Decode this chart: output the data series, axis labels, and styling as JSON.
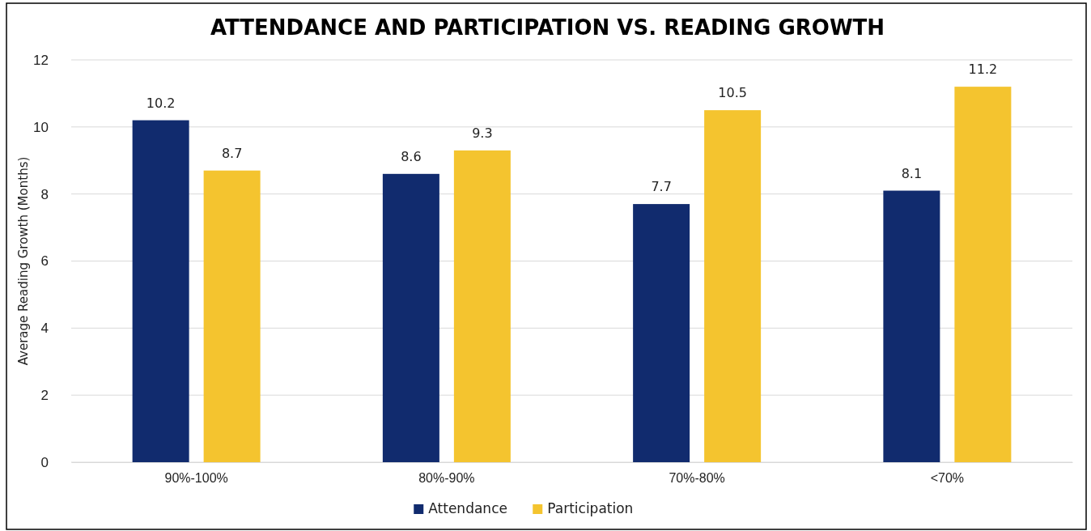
{
  "chart_data": {
    "type": "bar",
    "title": "ATTENDANCE AND PARTICIPATION VS. READING GROWTH",
    "ylabel": "Average Reading Growth (Months)",
    "categories": [
      "90%-100%",
      "80%-90%",
      "70%-80%",
      "<70%"
    ],
    "series": [
      {
        "name": "Attendance",
        "color": "#112b6e",
        "values": [
          10.2,
          8.6,
          7.7,
          8.1
        ]
      },
      {
        "name": "Participation",
        "color": "#f4c42f",
        "values": [
          8.7,
          9.3,
          10.5,
          11.2
        ]
      }
    ],
    "ylim": [
      0,
      12
    ],
    "yticks": [
      0,
      2,
      4,
      6,
      8,
      10,
      12
    ],
    "grid": "y",
    "legend": "bottom",
    "data_labels": true
  }
}
